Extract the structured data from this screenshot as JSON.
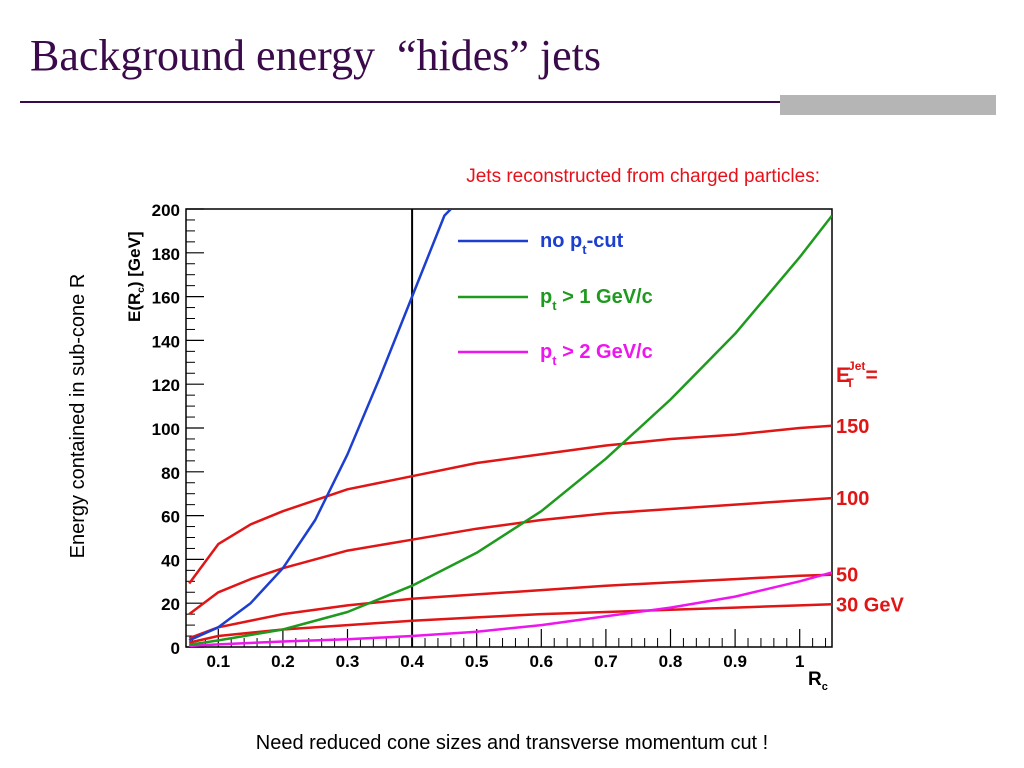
{
  "slide": {
    "title": "Background energy  “hides” jets",
    "side_label": "Energy contained in sub-cone R",
    "footnote": "Need reduced cone sizes and transverse momentum cut !"
  },
  "colors": {
    "title": "#3a0a4a",
    "subtitle": "#e8101a",
    "no_cut": "#1c3fd0",
    "pt1": "#1e9a1e",
    "pt2": "#ee16ee",
    "red": "#e01515"
  },
  "chart_data": {
    "type": "line",
    "title": "Jets reconstructed from charged particles:",
    "xlabel": "R",
    "xlabel_sub": "c",
    "ylabel": "E(R",
    "ylabel_sub": "c",
    "ylabel_tail": ")  [GeV]",
    "xlim": [
      0.05,
      1.05
    ],
    "ylim": [
      0,
      200
    ],
    "xticks": [
      0.1,
      0.2,
      0.3,
      0.4,
      0.5,
      0.6,
      0.7,
      0.8,
      0.9,
      1
    ],
    "xtick_labels": [
      "0.1",
      "0.2",
      "0.3",
      "0.4",
      "0.5",
      "0.6",
      "0.7",
      "0.8",
      "0.9",
      "1"
    ],
    "yticks": [
      0,
      20,
      40,
      60,
      80,
      100,
      120,
      140,
      160,
      180,
      200
    ],
    "ytick_labels": [
      "0",
      "20",
      "40",
      "60",
      "80",
      "100",
      "120",
      "140",
      "160",
      "180",
      "200"
    ],
    "vline_x": 0.4,
    "legend": [
      {
        "prefix": "no p",
        "sub": "t",
        "suffix": "-cut",
        "color": "#1c3fd0"
      },
      {
        "prefix": "p",
        "sub": "t",
        "suffix": " >  1  GeV/c",
        "color": "#1e9a1e"
      },
      {
        "prefix": "p",
        "sub": "t",
        "suffix": " >  2  GeV/c",
        "color": "#ee16ee"
      }
    ],
    "et_label": {
      "main": "E",
      "sub": "T",
      "sup": "Jet",
      "tail": " ="
    },
    "series": [
      {
        "name": "no pt-cut",
        "color": "#1c3fd0",
        "x": [
          0.055,
          0.1,
          0.15,
          0.2,
          0.25,
          0.3,
          0.35,
          0.4,
          0.45,
          0.46
        ],
        "y": [
          3,
          9,
          20,
          36,
          58,
          88,
          123,
          160,
          197,
          200
        ]
      },
      {
        "name": "pt > 1 GeV/c",
        "color": "#1e9a1e",
        "x": [
          0.055,
          0.1,
          0.2,
          0.3,
          0.4,
          0.5,
          0.6,
          0.7,
          0.8,
          0.9,
          1.0,
          1.05
        ],
        "y": [
          1,
          3,
          8,
          16,
          28,
          43,
          62,
          86,
          113,
          143,
          178,
          197
        ]
      },
      {
        "name": "pt > 2 GeV/c",
        "color": "#ee16ee",
        "x": [
          0.055,
          0.1,
          0.2,
          0.3,
          0.4,
          0.5,
          0.6,
          0.7,
          0.8,
          0.9,
          1.0,
          1.05
        ],
        "y": [
          0.5,
          1.2,
          2.5,
          3.5,
          5,
          7,
          10,
          14,
          18,
          23,
          30,
          34
        ]
      },
      {
        "name": "150",
        "color": "#e01515",
        "x": [
          0.055,
          0.1,
          0.15,
          0.2,
          0.3,
          0.4,
          0.5,
          0.6,
          0.7,
          0.8,
          0.9,
          1.0,
          1.05
        ],
        "y": [
          29,
          47,
          56,
          62,
          72,
          78,
          84,
          88,
          92,
          95,
          97,
          100,
          101
        ]
      },
      {
        "name": "100",
        "color": "#e01515",
        "x": [
          0.055,
          0.1,
          0.15,
          0.2,
          0.3,
          0.4,
          0.5,
          0.6,
          0.7,
          0.8,
          0.9,
          1.0,
          1.05
        ],
        "y": [
          15,
          25,
          31,
          36,
          44,
          49,
          54,
          58,
          61,
          63,
          65,
          67,
          68
        ]
      },
      {
        "name": "50",
        "color": "#e01515",
        "x": [
          0.055,
          0.1,
          0.2,
          0.3,
          0.4,
          0.5,
          0.6,
          0.7,
          0.8,
          0.9,
          1.0,
          1.05
        ],
        "y": [
          4,
          9,
          15,
          19,
          22,
          24,
          26,
          28,
          29.5,
          31,
          32.5,
          33
        ]
      },
      {
        "name": "30 GeV",
        "color": "#e01515",
        "x": [
          0.055,
          0.1,
          0.2,
          0.3,
          0.4,
          0.5,
          0.6,
          0.7,
          0.8,
          0.9,
          1.0,
          1.05
        ],
        "y": [
          2,
          5,
          8,
          10,
          12,
          13.5,
          15,
          16,
          17,
          18,
          19,
          19.5
        ]
      }
    ],
    "red_labels": [
      "150",
      "100",
      "50",
      "30   GeV"
    ]
  }
}
